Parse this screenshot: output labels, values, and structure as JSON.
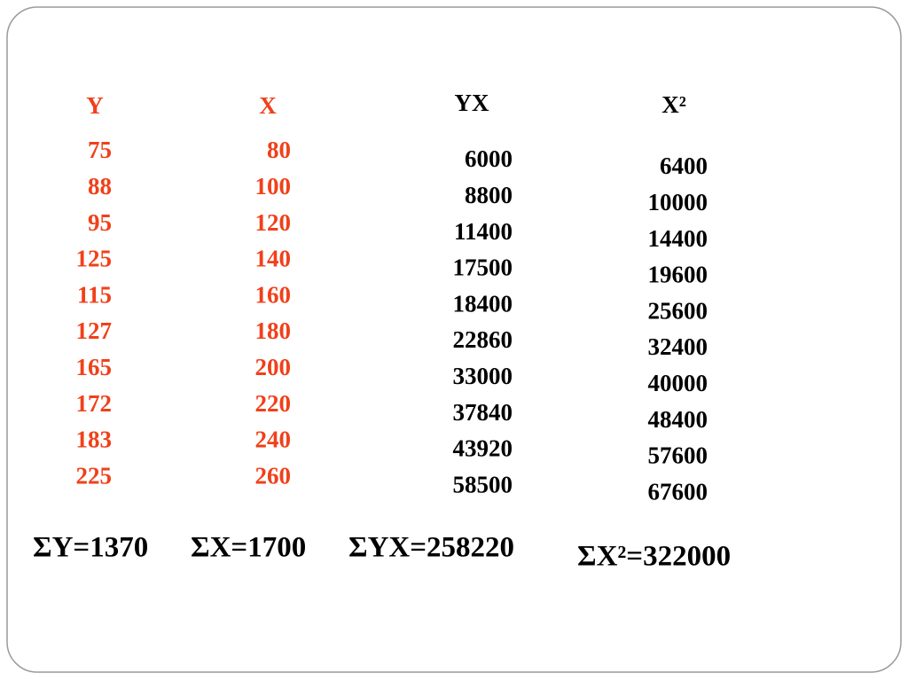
{
  "columns": [
    {
      "header": "Y",
      "values": [
        75,
        88,
        95,
        125,
        115,
        127,
        165,
        172,
        183,
        225
      ],
      "sum": "ΣY=1370"
    },
    {
      "header": "X",
      "values": [
        80,
        100,
        120,
        140,
        160,
        180,
        200,
        220,
        240,
        260
      ],
      "sum": "ΣX=1700"
    },
    {
      "header": "YX",
      "values": [
        6000,
        8800,
        11400,
        17500,
        18400,
        22860,
        33000,
        37840,
        43920,
        58500
      ],
      "sum": "ΣYX=258220"
    },
    {
      "header": "X²",
      "values": [
        6400,
        10000,
        14400,
        19600,
        25600,
        32400,
        40000,
        48400,
        57600,
        67600
      ],
      "sum": "ΣX²=322000"
    }
  ]
}
